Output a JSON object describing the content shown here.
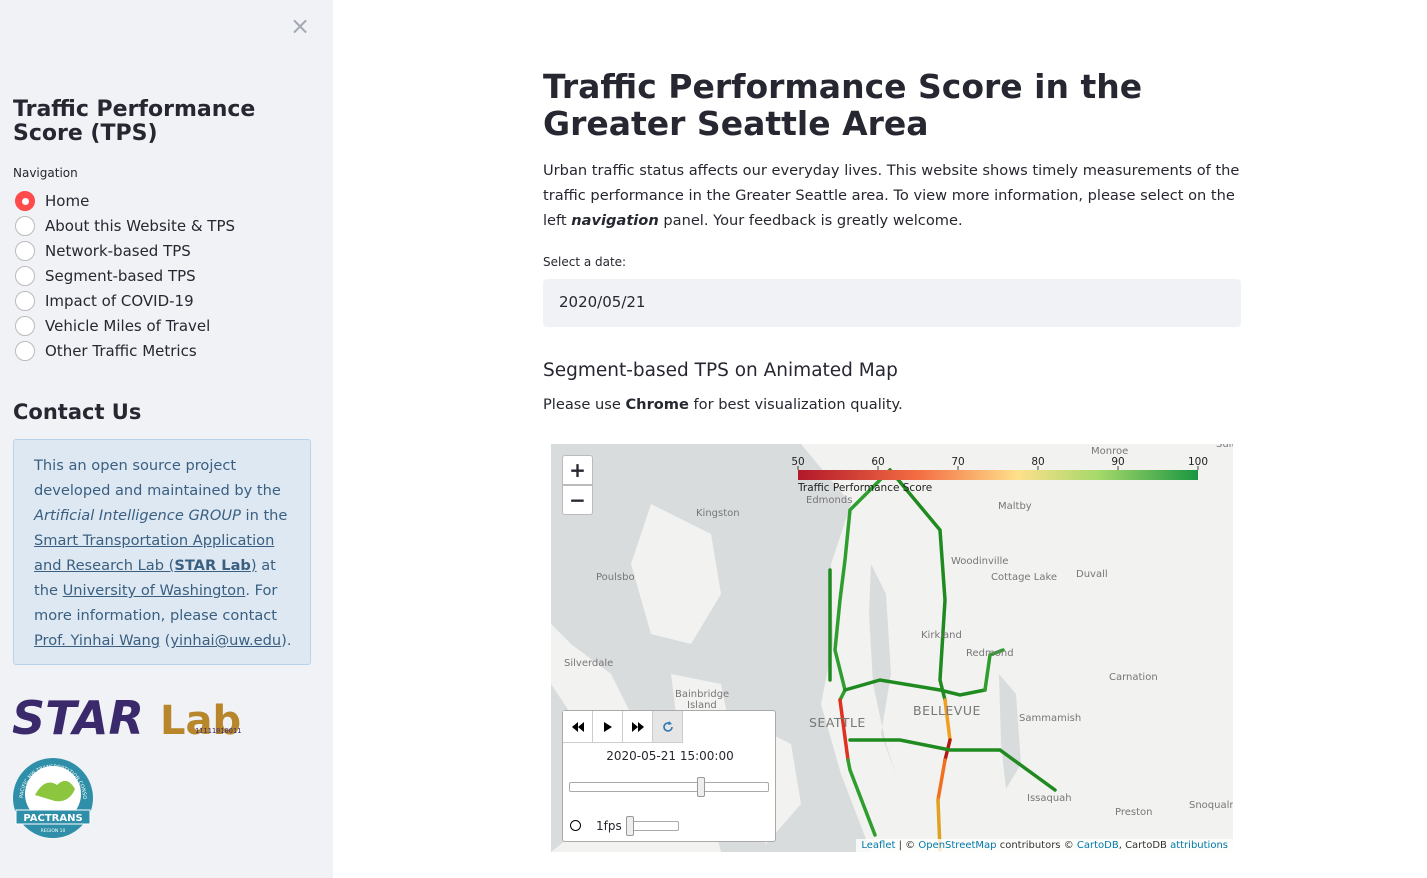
{
  "sidebar": {
    "close": "×",
    "title": "Traffic Performance Score (TPS)",
    "nav_label": "Navigation",
    "nav_options": [
      "Home",
      "About this Website & TPS",
      "Network-based TPS",
      "Segment-based TPS",
      "Impact of COVID-19",
      "Vehicle Miles of Travel",
      "Other Traffic Metrics"
    ],
    "selected_index": 0,
    "contact_title": "Contact Us",
    "contact_parts": [
      "This an open source project developed and maintained by the ",
      "Artificial Intelligence GROUP",
      " in the ",
      "Smart Transportation Application and Research Lab (",
      "STAR Lab",
      ")",
      " at the ",
      "University of Washington",
      ". For more information, please contact ",
      "Prof. Yinhai Wang",
      " (",
      "yinhai@uw.edu",
      ")."
    ],
    "logo": {
      "star": "STAR",
      "lab": "Lab",
      "binary": "11111010011",
      "pactrans": "PACTRANS",
      "ring": "PACIFIC NW TRANSPORTATION CONSORTIUM",
      "region": "REGION 10"
    }
  },
  "main": {
    "title": "Traffic Performance Score in the Greater Seattle Area",
    "intro_parts": [
      "Urban traffic status affects our everyday lives. This website shows timely measurements of the traffic performance in the Greater Seattle area. To view more information, please select on the left ",
      "navigation",
      " panel. Your feedback is greatly welcome."
    ],
    "date_label": "Select a date:",
    "date_value": "2020/05/21",
    "subheader": "Segment-based TPS on Animated Map",
    "note_parts": [
      "Please use ",
      "Chrome",
      " for best visualization quality."
    ],
    "map": {
      "zoom_in": "+",
      "zoom_out": "−",
      "colorbar": {
        "title": "Traffic Performance Score",
        "range": [
          50,
          100
        ],
        "ticks": [
          50,
          60,
          70,
          80,
          90,
          100
        ]
      },
      "places": [
        "Monroe",
        "Sultan",
        "Kingston",
        "Edmonds",
        "Maltby",
        "Woodinville",
        "Cottage Lake",
        "Duvall",
        "Poulsbo",
        "Kirkland",
        "Redmond",
        "Silverdale",
        "Carnation",
        "Bainbridge",
        "Island",
        "SEATTLE",
        "BELLEVUE",
        "Sammamish",
        "Issaquah",
        "Preston",
        "Snoqualmie"
      ],
      "player": {
        "time": "2020-05-21 15:00:00",
        "fps": "1fps"
      },
      "attribution": [
        "Leaflet",
        " | © ",
        "OpenStreetMap",
        " contributors © ",
        "CartoDB",
        ", CartoDB ",
        "attributions"
      ]
    }
  }
}
